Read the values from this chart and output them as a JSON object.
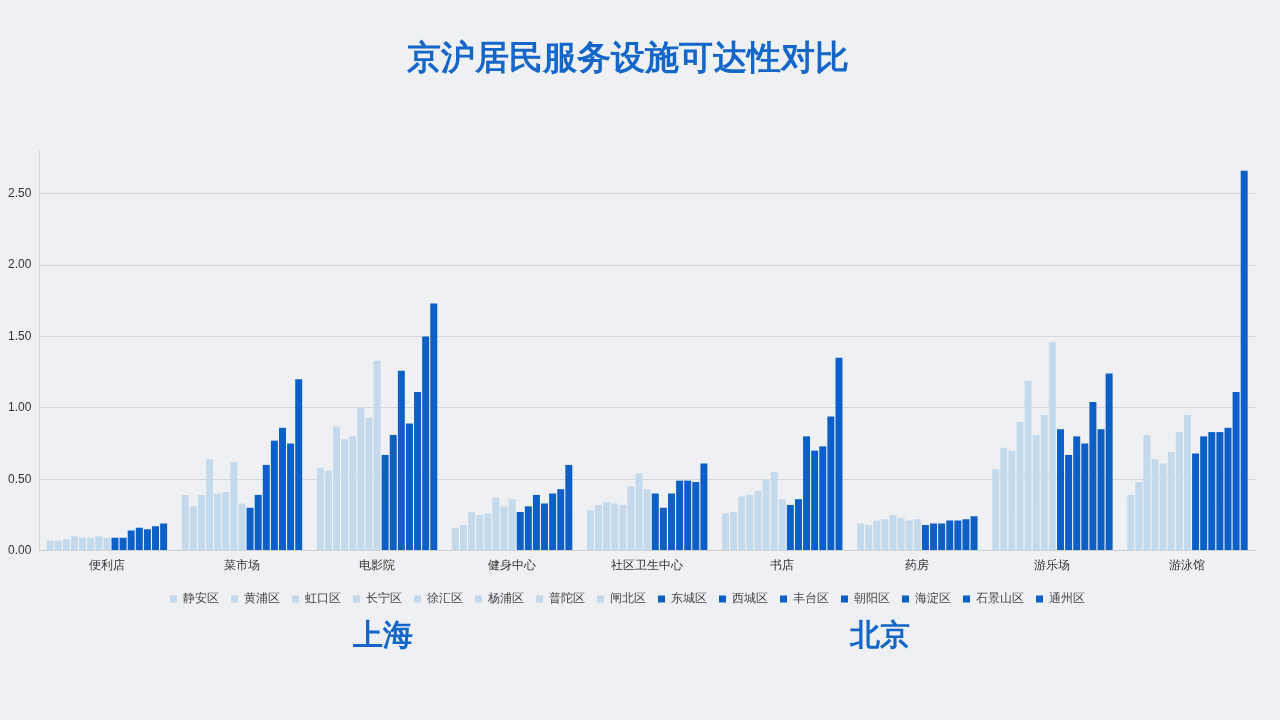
{
  "chart_data": {
    "type": "bar",
    "title": "京沪居民服务设施可达性对比",
    "categories": [
      "便利店",
      "菜市场",
      "电影院",
      "健身中心",
      "社区卫生中心",
      "书店",
      "药房",
      "游乐场",
      "游泳馆"
    ],
    "series": [
      {
        "name": "静安区",
        "color": "#c5d9ec",
        "values": [
          0.07,
          0.39,
          0.58,
          0.16,
          0.28,
          0.26,
          0.19,
          0.57,
          0.39
        ]
      },
      {
        "name": "黄浦区",
        "color": "#c5d9ec",
        "values": [
          0.07,
          0.31,
          0.56,
          0.18,
          0.32,
          0.27,
          0.18,
          0.72,
          0.48
        ]
      },
      {
        "name": "虹口区",
        "color": "#c5d9ec",
        "values": [
          0.08,
          0.39,
          0.87,
          0.27,
          0.34,
          0.38,
          0.21,
          0.7,
          0.81
        ]
      },
      {
        "name": "长宁区",
        "color": "#c5d9ec",
        "values": [
          0.1,
          0.64,
          0.78,
          0.25,
          0.33,
          0.39,
          0.22,
          0.9,
          0.64
        ]
      },
      {
        "name": "徐汇区",
        "color": "#c5d9ec",
        "values": [
          0.09,
          0.4,
          0.8,
          0.26,
          0.32,
          0.42,
          0.25,
          1.19,
          0.61
        ]
      },
      {
        "name": "杨浦区",
        "color": "#c5d9ec",
        "values": [
          0.09,
          0.41,
          1.0,
          0.37,
          0.45,
          0.5,
          0.23,
          0.81,
          0.69
        ]
      },
      {
        "name": "普陀区",
        "color": "#c5d9ec",
        "values": [
          0.1,
          0.62,
          0.93,
          0.31,
          0.54,
          0.55,
          0.21,
          0.95,
          0.83
        ]
      },
      {
        "name": "闸北区",
        "color": "#c5d9ec",
        "values": [
          0.09,
          0.33,
          1.33,
          0.36,
          0.43,
          0.36,
          0.22,
          1.46,
          0.95
        ]
      },
      {
        "name": "东城区",
        "color": "#0b5fc6",
        "values": [
          0.09,
          0.3,
          0.67,
          0.27,
          0.4,
          0.32,
          0.18,
          0.85,
          0.68
        ]
      },
      {
        "name": "西城区",
        "color": "#0b5fc6",
        "values": [
          0.09,
          0.39,
          0.81,
          0.31,
          0.3,
          0.36,
          0.19,
          0.67,
          0.8
        ]
      },
      {
        "name": "丰台区",
        "color": "#0b5fc6",
        "values": [
          0.14,
          0.6,
          1.26,
          0.39,
          0.4,
          0.8,
          0.19,
          0.8,
          0.83
        ]
      },
      {
        "name": "朝阳区",
        "color": "#0b5fc6",
        "values": [
          0.16,
          0.77,
          0.89,
          0.33,
          0.49,
          0.7,
          0.21,
          0.75,
          0.83
        ]
      },
      {
        "name": "海淀区",
        "color": "#0b5fc6",
        "values": [
          0.15,
          0.86,
          1.11,
          0.4,
          0.49,
          0.73,
          0.21,
          1.04,
          0.86
        ]
      },
      {
        "name": "石景山区",
        "color": "#0b5fc6",
        "values": [
          0.17,
          0.75,
          1.5,
          0.43,
          0.48,
          0.94,
          0.22,
          0.85,
          1.11
        ]
      },
      {
        "name": "通州区",
        "color": "#0b5fc6",
        "values": [
          0.19,
          1.2,
          1.73,
          0.6,
          0.61,
          1.35,
          0.24,
          1.24,
          2.66
        ]
      }
    ],
    "ylim": [
      0,
      2.8
    ],
    "yticks": [
      {
        "value": 0,
        "label": "0.00"
      },
      {
        "value": 0.5,
        "label": "0.50"
      },
      {
        "value": 1,
        "label": "1.00"
      },
      {
        "value": 1.5,
        "label": "1.50"
      },
      {
        "value": 2,
        "label": "2.00"
      },
      {
        "value": 2.5,
        "label": "2.50"
      }
    ],
    "grid": "y",
    "legend": "bottom",
    "marker": "square",
    "annotations": [
      {
        "text": "上海"
      },
      {
        "text": "北京"
      }
    ]
  }
}
